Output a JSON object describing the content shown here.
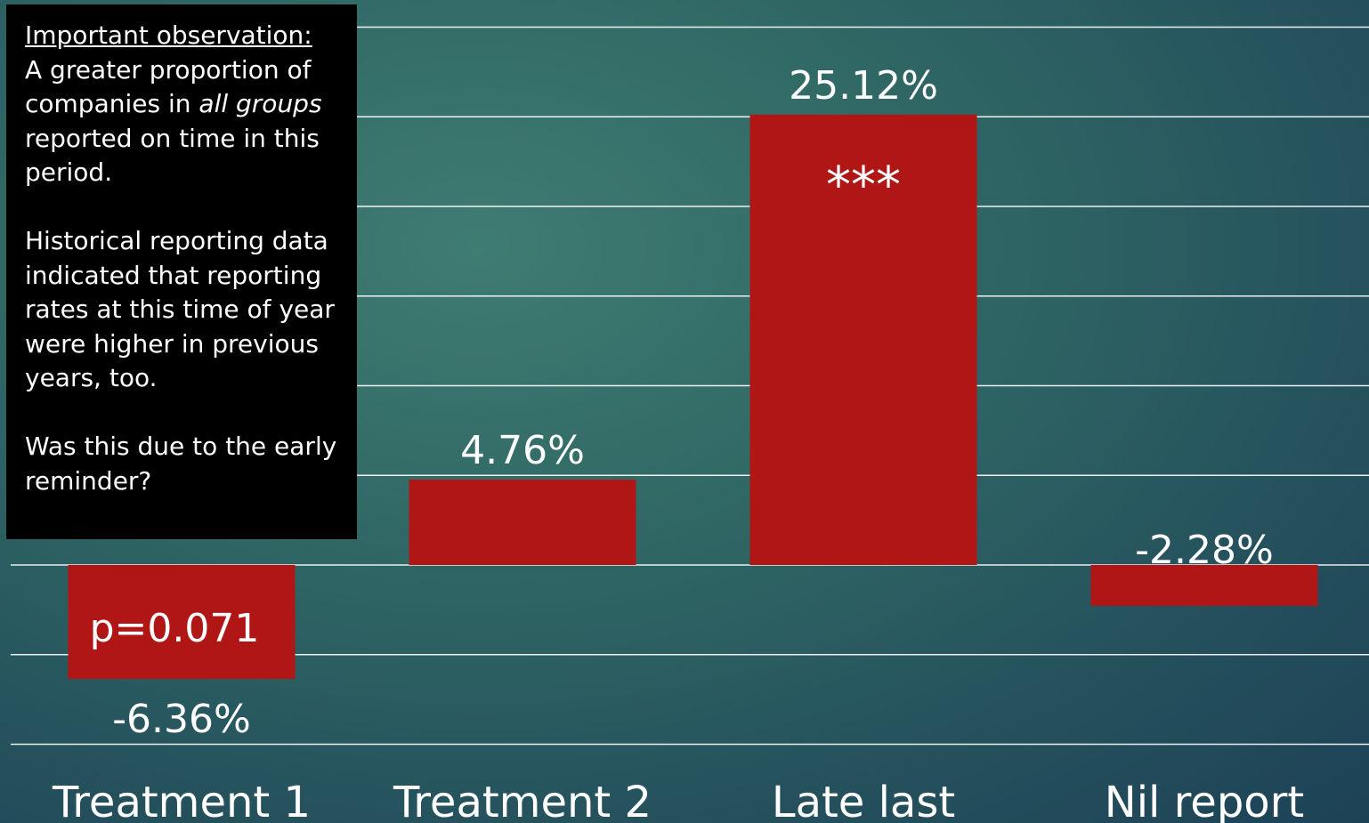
{
  "chart_data": {
    "type": "bar",
    "categories": [
      "Treatment 1",
      "Treatment 2",
      "Late last",
      "Nil report"
    ],
    "values": [
      -6.36,
      4.76,
      25.12,
      -2.28
    ],
    "value_labels": [
      "-6.36%",
      "4.76%",
      "25.12%",
      "-2.28%"
    ],
    "annotations": [
      {
        "category": "Treatment 1",
        "text": "p=0.071"
      },
      {
        "category": "Late last",
        "text": "***"
      }
    ],
    "ylim": [
      -10,
      30
    ],
    "grid": true,
    "bar_color": "#b11616"
  },
  "callout": {
    "heading": "Important observation:",
    "p1_a": "A greater proportion of companies in ",
    "p1_em1": "all groups",
    "p1_b": " reported on time in this period.",
    "p2": "Historical reporting data indicated that reporting rates at this time of year were higher in previous years, too.",
    "p3": "Was this due to the early reminder?"
  }
}
